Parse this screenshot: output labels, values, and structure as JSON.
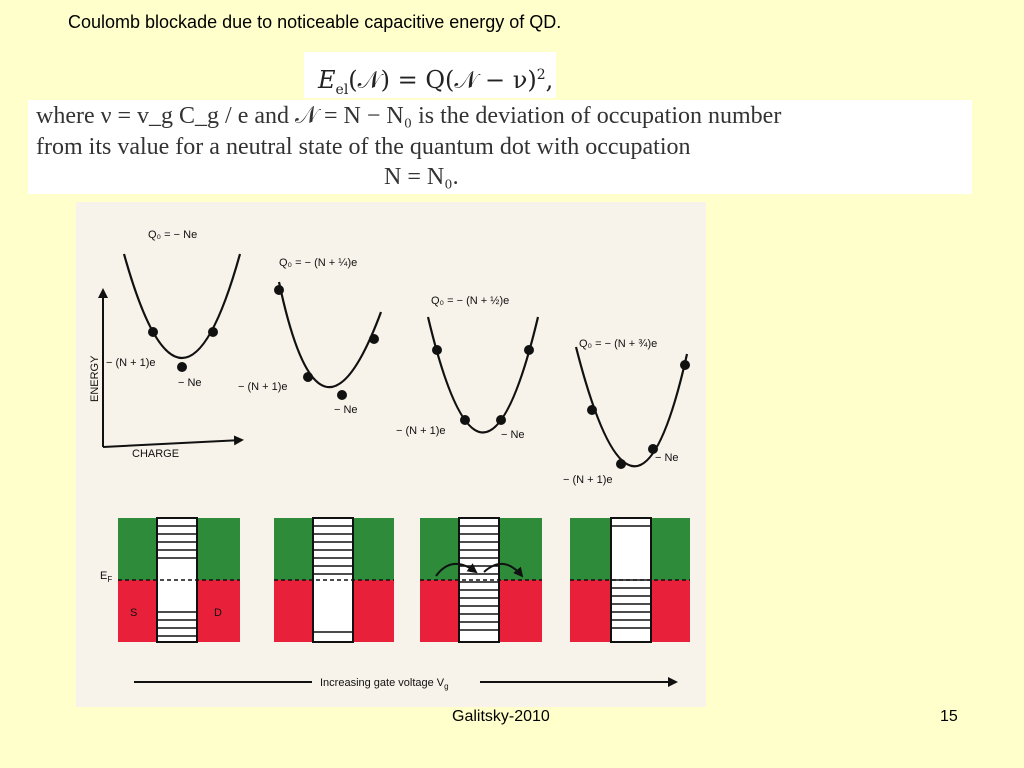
{
  "slide": {
    "title": "Coulomb blockade due to noticeable capacitive energy of QD.",
    "footer_author": "Galitsky-2010",
    "page_number": "15"
  },
  "formula": {
    "lhs_symbol": "E",
    "lhs_sub": "el",
    "lhs_arg": "(𝒩)",
    "rhs": " = Q(𝒩 − ν)",
    "rhs_exp": "2",
    "tail": ","
  },
  "definition_text": {
    "line1": "where ν = v_g C_g / e and 𝒩 = N − N₀ is the deviation of occupation number",
    "line2": "from its value for a neutral state of the quantum dot with occupation",
    "line3": "N = N₀."
  },
  "figure": {
    "axis_labels": {
      "y": "ENERGY",
      "x": "CHARGE"
    },
    "panels": [
      {
        "q_label": "Q₀ = − Ne",
        "left_label": "− (N + 1)e",
        "right_label": "− Ne"
      },
      {
        "q_label": "Q₀ = − (N + ¼)e",
        "left_label": "− (N + 1)e",
        "right_label": "− Ne"
      },
      {
        "q_label": "Q₀ = − (N + ½)e",
        "left_label": "− (N + 1)e",
        "right_label": "− Ne"
      },
      {
        "q_label": "Q₀ = − (N + ¾)e",
        "left_label": "− (N + 1)e",
        "right_label": "− Ne"
      }
    ],
    "band_labels": {
      "fermi": "E",
      "fermi_sub": "F",
      "source": "S",
      "drain": "D"
    },
    "gate_arrow_label": "Increasing gate voltage V",
    "gate_arrow_sub": "g",
    "colors": {
      "upper_band": "#2e8b3a",
      "lower_band": "#e8203a",
      "background": "#f7f2ea"
    }
  }
}
